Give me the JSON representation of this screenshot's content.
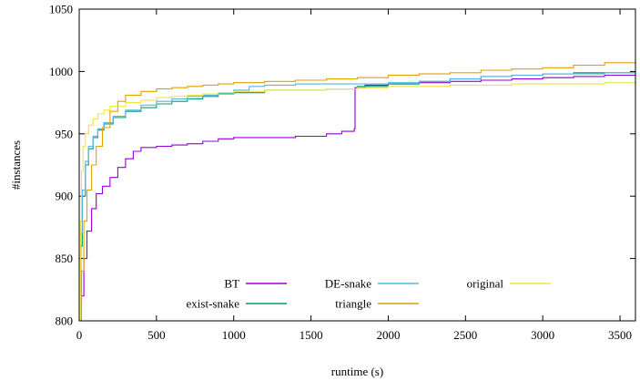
{
  "chart_data": {
    "type": "line",
    "title": "",
    "xlabel": "runtime (s)",
    "ylabel": "#instances",
    "xlim": [
      0,
      3600
    ],
    "ylim": [
      800,
      1050
    ],
    "xticks": [
      0,
      500,
      1000,
      1500,
      2000,
      2500,
      3000,
      3500
    ],
    "yticks": [
      800,
      850,
      900,
      950,
      1000,
      1050
    ],
    "grid": false,
    "legend_position": "bottom-center",
    "series": [
      {
        "name": "BT",
        "color": "#9400d3",
        "points": [
          [
            0,
            800
          ],
          [
            15,
            820
          ],
          [
            30,
            850
          ],
          [
            50,
            872
          ],
          [
            80,
            890
          ],
          [
            110,
            902
          ],
          [
            150,
            908
          ],
          [
            200,
            915
          ],
          [
            250,
            923
          ],
          [
            300,
            930
          ],
          [
            350,
            936
          ],
          [
            400,
            939
          ],
          [
            500,
            940
          ],
          [
            600,
            941
          ],
          [
            700,
            942
          ],
          [
            800,
            944
          ],
          [
            900,
            946
          ],
          [
            1000,
            947
          ],
          [
            1200,
            947
          ],
          [
            1400,
            948
          ],
          [
            1600,
            950
          ],
          [
            1700,
            952
          ],
          [
            1780,
            954
          ],
          [
            1785,
            987
          ],
          [
            1850,
            989
          ],
          [
            2000,
            990
          ],
          [
            2200,
            991
          ],
          [
            2400,
            992
          ],
          [
            2600,
            993
          ],
          [
            2800,
            994
          ],
          [
            3000,
            995
          ],
          [
            3200,
            996
          ],
          [
            3400,
            997
          ],
          [
            3600,
            998
          ]
        ]
      },
      {
        "name": "exist-snake",
        "color": "#009e73",
        "points": [
          [
            0,
            800
          ],
          [
            10,
            860
          ],
          [
            20,
            900
          ],
          [
            40,
            925
          ],
          [
            60,
            938
          ],
          [
            90,
            947
          ],
          [
            120,
            953
          ],
          [
            160,
            958
          ],
          [
            220,
            963
          ],
          [
            300,
            968
          ],
          [
            400,
            971
          ],
          [
            500,
            974
          ],
          [
            600,
            976
          ],
          [
            700,
            978
          ],
          [
            800,
            980
          ],
          [
            900,
            982
          ],
          [
            1000,
            983
          ],
          [
            1200,
            985
          ],
          [
            1400,
            985
          ],
          [
            1600,
            986
          ],
          [
            1800,
            988
          ],
          [
            2000,
            990
          ],
          [
            2200,
            992
          ],
          [
            2400,
            994
          ],
          [
            2600,
            996
          ],
          [
            2800,
            997
          ],
          [
            3000,
            998
          ],
          [
            3200,
            999
          ],
          [
            3400,
            999
          ],
          [
            3600,
            1000
          ]
        ]
      },
      {
        "name": "DE-snake",
        "color": "#56b4e9",
        "points": [
          [
            0,
            800
          ],
          [
            10,
            870
          ],
          [
            20,
            905
          ],
          [
            40,
            928
          ],
          [
            60,
            940
          ],
          [
            90,
            948
          ],
          [
            120,
            954
          ],
          [
            160,
            959
          ],
          [
            220,
            964
          ],
          [
            300,
            969
          ],
          [
            400,
            973
          ],
          [
            500,
            976
          ],
          [
            600,
            978
          ],
          [
            700,
            980
          ],
          [
            800,
            981
          ],
          [
            900,
            983
          ],
          [
            1000,
            985
          ],
          [
            1100,
            988
          ],
          [
            1200,
            989
          ],
          [
            1400,
            990
          ],
          [
            1600,
            990
          ],
          [
            1800,
            990
          ],
          [
            2000,
            991
          ],
          [
            2200,
            992
          ],
          [
            2400,
            994
          ],
          [
            2600,
            996
          ],
          [
            2800,
            997
          ],
          [
            3000,
            998
          ],
          [
            3200,
            998
          ],
          [
            3400,
            999
          ],
          [
            3600,
            999
          ]
        ]
      },
      {
        "name": "triangle",
        "color": "#e69f00",
        "points": [
          [
            0,
            800
          ],
          [
            15,
            840
          ],
          [
            30,
            880
          ],
          [
            50,
            905
          ],
          [
            80,
            925
          ],
          [
            110,
            940
          ],
          [
            150,
            955
          ],
          [
            200,
            968
          ],
          [
            250,
            976
          ],
          [
            300,
            981
          ],
          [
            400,
            984
          ],
          [
            500,
            986
          ],
          [
            600,
            987
          ],
          [
            700,
            988
          ],
          [
            800,
            989
          ],
          [
            900,
            990
          ],
          [
            1000,
            991
          ],
          [
            1200,
            992
          ],
          [
            1400,
            993
          ],
          [
            1600,
            994
          ],
          [
            1800,
            995
          ],
          [
            2000,
            997
          ],
          [
            2200,
            998
          ],
          [
            2400,
            999
          ],
          [
            2600,
            1001
          ],
          [
            2800,
            1002
          ],
          [
            3000,
            1003
          ],
          [
            3200,
            1005
          ],
          [
            3400,
            1007
          ],
          [
            3600,
            1009
          ]
        ]
      },
      {
        "name": "original",
        "color": "#f0e442",
        "points": [
          [
            0,
            800
          ],
          [
            8,
            880
          ],
          [
            15,
            920
          ],
          [
            25,
            940
          ],
          [
            40,
            950
          ],
          [
            60,
            957
          ],
          [
            90,
            962
          ],
          [
            120,
            966
          ],
          [
            160,
            969
          ],
          [
            200,
            972
          ],
          [
            300,
            975
          ],
          [
            400,
            977
          ],
          [
            500,
            979
          ],
          [
            600,
            980
          ],
          [
            700,
            981
          ],
          [
            800,
            982
          ],
          [
            900,
            983
          ],
          [
            1000,
            984
          ],
          [
            1200,
            985
          ],
          [
            1400,
            985
          ],
          [
            1600,
            986
          ],
          [
            1800,
            987
          ],
          [
            2000,
            988
          ],
          [
            2200,
            988
          ],
          [
            2400,
            989
          ],
          [
            2600,
            989
          ],
          [
            2800,
            990
          ],
          [
            3000,
            990
          ],
          [
            3200,
            990
          ],
          [
            3400,
            991
          ],
          [
            3600,
            991
          ]
        ]
      }
    ]
  }
}
